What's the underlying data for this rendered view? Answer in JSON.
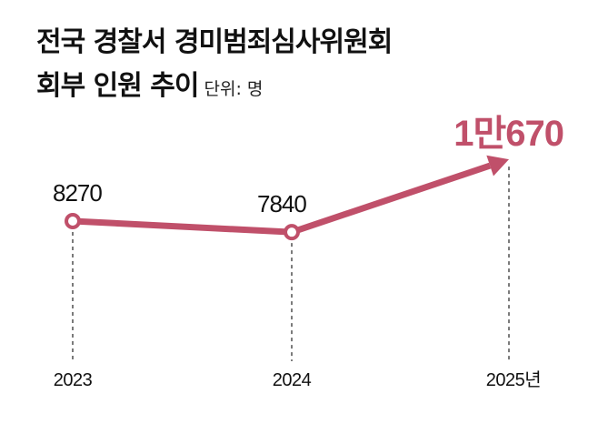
{
  "chart_data": {
    "type": "line",
    "title_line1": "전국 경찰서 경미범죄심사위원회",
    "title_line2": "회부 인원 추이",
    "unit": "단위: 명",
    "categories": [
      "2023",
      "2024",
      "2025년"
    ],
    "values": [
      8270,
      7840,
      10670
    ],
    "value_labels": [
      "8270",
      "7840",
      "1만670"
    ],
    "xlabel": "",
    "ylabel": "",
    "grid": false,
    "legend": "none"
  },
  "colors": {
    "accent": "#c0506a",
    "text": "#111111",
    "dash": "#333333"
  }
}
